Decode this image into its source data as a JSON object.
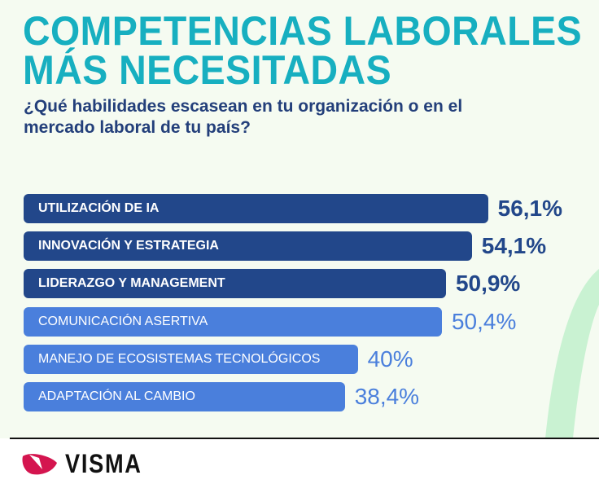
{
  "title_line1": "COMPETENCIAS LABORALES",
  "title_line2": "MÁS NECESITADAS",
  "subtitle": "¿Qué habilidades escasean en tu organización o en el mercado laboral de tu país?",
  "brand": "VISMA",
  "colors": {
    "title": "#17afc0",
    "dark_bar": "#22478a",
    "light_bar": "#4a7fdc"
  },
  "chart_data": {
    "type": "bar",
    "orientation": "horizontal",
    "categories": [
      "UTILIZACIÓN DE IA",
      "INNOVACIÓN Y ESTRATEGIA",
      "LIDERAZGO Y MANAGEMENT",
      "COMUNICACIÓN ASERTIVA",
      "MANEJO DE ECOSISTEMAS TECNOLÓGICOS",
      "ADAPTACIÓN AL CAMBIO"
    ],
    "values": [
      56.1,
      54.1,
      50.9,
      50.4,
      40,
      38.4
    ],
    "labels": [
      "56,1%",
      "54,1%",
      "50,9%",
      "50,4%",
      "40%",
      "38,4%"
    ],
    "style": [
      "dark",
      "dark",
      "dark",
      "light",
      "light",
      "light"
    ],
    "unit": "%"
  }
}
